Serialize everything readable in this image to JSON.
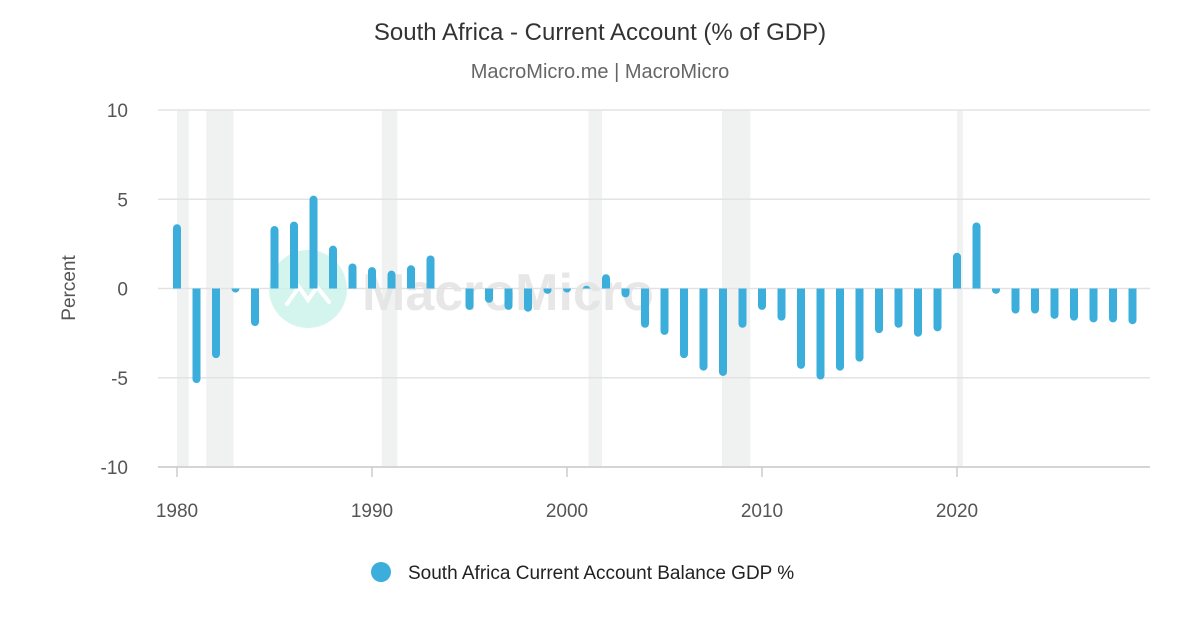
{
  "chart_data": {
    "type": "bar",
    "title": "South Africa - Current Account (% of GDP)",
    "subtitle": "MacroMicro.me | MacroMicro",
    "ylabel": "Percent",
    "xlabel": "",
    "ylim": [
      -10,
      10
    ],
    "yticks": [
      10,
      5,
      0,
      -5,
      -10
    ],
    "xlim": [
      1979,
      2030
    ],
    "xticks": [
      1980,
      1990,
      2000,
      2010,
      2020
    ],
    "grid": true,
    "legend_position": "bottom",
    "watermark": "MacroMicro",
    "recession_bands": [
      [
        1980.0,
        1980.6
      ],
      [
        1981.5,
        1982.9
      ],
      [
        1990.5,
        1991.3
      ],
      [
        2001.1,
        2001.8
      ],
      [
        2007.95,
        2009.4
      ],
      [
        2020.0,
        2020.3
      ]
    ],
    "series": [
      {
        "name": "South Africa Current Account Balance GDP %",
        "color": "#3baedb",
        "x": [
          1980,
          1981,
          1982,
          1983,
          1984,
          1985,
          1986,
          1987,
          1988,
          1989,
          1990,
          1991,
          1992,
          1993,
          1994,
          1995,
          1996,
          1997,
          1998,
          1999,
          2000,
          2001,
          2002,
          2003,
          2004,
          2005,
          2006,
          2007,
          2008,
          2009,
          2010,
          2011,
          2012,
          2013,
          2014,
          2015,
          2016,
          2017,
          2018,
          2019,
          2020,
          2021,
          2022,
          2023,
          2024,
          2025,
          2026,
          2027,
          2028,
          2029
        ],
        "values": [
          3.6,
          -5.3,
          -3.9,
          -0.2,
          -2.1,
          3.5,
          3.75,
          5.2,
          2.4,
          1.4,
          1.2,
          1.0,
          1.3,
          1.85,
          0.0,
          -1.2,
          -0.8,
          -1.2,
          -1.3,
          -0.3,
          -0.1,
          0.1,
          0.8,
          -0.5,
          -2.2,
          -2.6,
          -3.9,
          -4.6,
          -4.9,
          -2.2,
          -1.2,
          -1.8,
          -4.5,
          -5.1,
          -4.6,
          -4.1,
          -2.5,
          -2.2,
          -2.7,
          -2.4,
          2.0,
          3.7,
          -0.3,
          -1.4,
          -1.4,
          -1.7,
          -1.8,
          -1.9,
          -1.9,
          -2.0
        ]
      }
    ]
  }
}
